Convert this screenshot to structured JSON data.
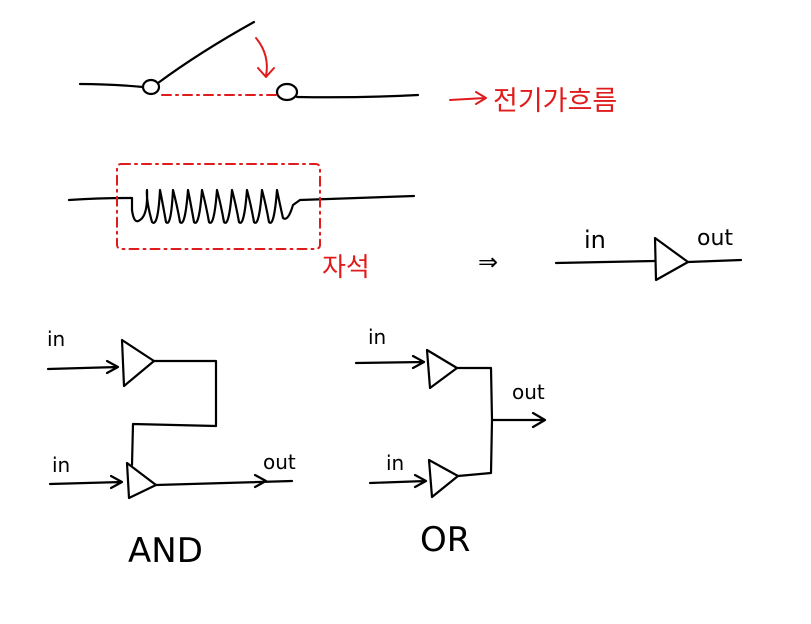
{
  "switch_diagram": {
    "flow_label": "전기가흐름"
  },
  "coil_diagram": {
    "magnet_label": "자석",
    "implies_symbol": "⇒"
  },
  "relay_symbol": {
    "in_label": "in",
    "out_label": "out"
  },
  "and_gate": {
    "in1_label": "in",
    "in2_label": "in",
    "out_label": "out",
    "title": "AND"
  },
  "or_gate": {
    "in1_label": "in",
    "in2_label": "in",
    "out_label": "out",
    "title": "OR"
  },
  "colors": {
    "ink": "#000000",
    "annotation": "#e01b1b",
    "background": "#ffffff"
  }
}
